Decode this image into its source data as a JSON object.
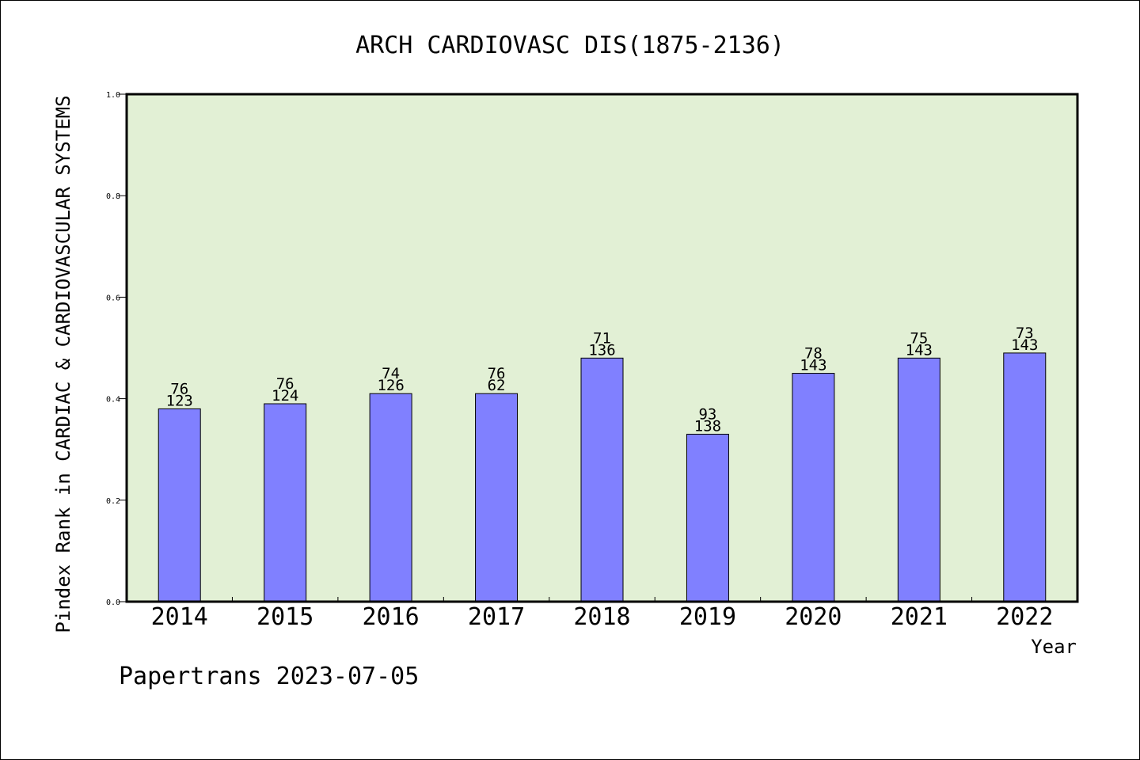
{
  "chart_data": {
    "type": "bar",
    "title": "ARCH CARDIOVASC DIS(1875-2136)",
    "xlabel": "Year",
    "ylabel": "Pindex Rank in CARDIAC & CARDIOVASCULAR SYSTEMS",
    "ylim": [
      0.0,
      1.0
    ],
    "yticks": [
      "0.0",
      "0.2",
      "0.4",
      "0.6",
      "0.8",
      "1.0"
    ],
    "categories": [
      "2014",
      "2015",
      "2016",
      "2017",
      "2018",
      "2019",
      "2020",
      "2021",
      "2022"
    ],
    "values": [
      0.38,
      0.39,
      0.41,
      0.41,
      0.48,
      0.33,
      0.45,
      0.48,
      0.49
    ],
    "labels_top": [
      "76",
      "76",
      "74",
      "76",
      "71",
      "93",
      "78",
      "75",
      "73"
    ],
    "labels_bottom": [
      "123",
      "124",
      "126",
      "62",
      "136",
      "138",
      "143",
      "143",
      "143"
    ],
    "plot_background": "#e2f0d5",
    "bar_color": "#8080ff",
    "grid": false
  },
  "footer": {
    "credit": "Papertrans 2023-07-05"
  }
}
